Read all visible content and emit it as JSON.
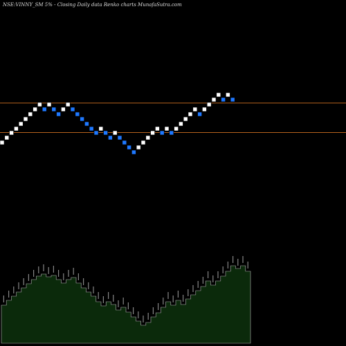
{
  "chart_data": {
    "type": "renko",
    "title": "NSE:VINNY_SM 5% -  Closing Daily data  Renko  charts MunafaSutra.com",
    "colors": {
      "background": "#000000",
      "up_brick": "#ffffff",
      "down_brick": "#1e78ff",
      "reference_line": "#b8641e",
      "volume_fill": "#0b2a0b",
      "volume_outline": "#b4b4b4"
    },
    "reference_lines": [
      148.9,
      191.5
    ],
    "bricks": [
      {
        "level": 206,
        "dir": "up"
      },
      {
        "level": 199,
        "dir": "up"
      },
      {
        "level": 192,
        "dir": "up"
      },
      {
        "level": 186,
        "dir": "up"
      },
      {
        "level": 179,
        "dir": "up"
      },
      {
        "level": 172,
        "dir": "up"
      },
      {
        "level": 165,
        "dir": "up"
      },
      {
        "level": 158,
        "dir": "up"
      },
      {
        "level": 151,
        "dir": "up"
      },
      {
        "level": 158,
        "dir": "down"
      },
      {
        "level": 151,
        "dir": "up"
      },
      {
        "level": 158,
        "dir": "down"
      },
      {
        "level": 165,
        "dir": "down"
      },
      {
        "level": 158,
        "dir": "up"
      },
      {
        "level": 151,
        "dir": "up"
      },
      {
        "level": 158,
        "dir": "down"
      },
      {
        "level": 165,
        "dir": "down"
      },
      {
        "level": 172,
        "dir": "down"
      },
      {
        "level": 179,
        "dir": "down"
      },
      {
        "level": 186,
        "dir": "down"
      },
      {
        "level": 192,
        "dir": "down"
      },
      {
        "level": 186,
        "dir": "up"
      },
      {
        "level": 192,
        "dir": "down"
      },
      {
        "level": 199,
        "dir": "down"
      },
      {
        "level": 192,
        "dir": "up"
      },
      {
        "level": 199,
        "dir": "down"
      },
      {
        "level": 206,
        "dir": "down"
      },
      {
        "level": 213,
        "dir": "down"
      },
      {
        "level": 220,
        "dir": "down"
      },
      {
        "level": 213,
        "dir": "up"
      },
      {
        "level": 206,
        "dir": "up"
      },
      {
        "level": 199,
        "dir": "up"
      },
      {
        "level": 192,
        "dir": "up"
      },
      {
        "level": 186,
        "dir": "up"
      },
      {
        "level": 192,
        "dir": "down"
      },
      {
        "level": 186,
        "dir": "up"
      },
      {
        "level": 192,
        "dir": "down"
      },
      {
        "level": 186,
        "dir": "up"
      },
      {
        "level": 179,
        "dir": "up"
      },
      {
        "level": 172,
        "dir": "up"
      },
      {
        "level": 165,
        "dir": "up"
      },
      {
        "level": 158,
        "dir": "up"
      },
      {
        "level": 165,
        "dir": "down"
      },
      {
        "level": 158,
        "dir": "up"
      },
      {
        "level": 151,
        "dir": "up"
      },
      {
        "level": 144,
        "dir": "up"
      },
      {
        "level": 137,
        "dir": "up"
      },
      {
        "level": 144,
        "dir": "down"
      },
      {
        "level": 137,
        "dir": "up"
      },
      {
        "level": 144,
        "dir": "down"
      }
    ],
    "volume_profile": [
      55,
      62,
      68,
      74,
      80,
      86,
      92,
      97,
      100,
      96,
      98,
      92,
      87,
      92,
      95,
      87,
      80,
      74,
      68,
      60,
      54,
      60,
      56,
      48,
      52,
      45,
      38,
      32,
      26,
      30,
      38,
      44,
      52,
      60,
      55,
      62,
      56,
      64,
      70,
      76,
      82,
      90,
      84,
      90,
      97,
      104,
      112,
      108,
      112,
      104
    ]
  }
}
